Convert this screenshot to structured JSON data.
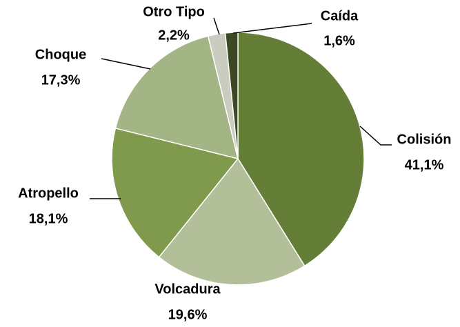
{
  "chart_data": {
    "type": "pie",
    "categories": [
      "Colisión",
      "Volcadura",
      "Atropello",
      "Choque",
      "Otro Tipo",
      "Caída"
    ],
    "values": [
      41.1,
      19.6,
      18.1,
      17.3,
      2.2,
      1.6
    ],
    "value_labels": [
      "41,1%",
      "19,6%",
      "18,1%",
      "17,3%",
      "2,2%",
      "1,6%"
    ],
    "colors": [
      "#647d37",
      "#b3bf99",
      "#7f9a4c",
      "#a3b584",
      "#c9ccbf",
      "#3b4a22"
    ]
  }
}
